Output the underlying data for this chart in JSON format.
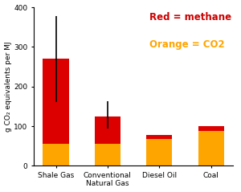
{
  "categories": [
    "Shale Gas",
    "Conventional\nNatural Gas",
    "Diesel Oil",
    "Coal"
  ],
  "orange_values": [
    55,
    55,
    68,
    88
  ],
  "red_values": [
    215,
    70,
    10,
    12
  ],
  "totals": [
    270,
    125,
    78,
    100
  ],
  "error_bars_lower": [
    110,
    30,
    0,
    0
  ],
  "error_bars_upper": [
    108,
    38,
    0,
    0
  ],
  "orange_color": "#FFA500",
  "red_color": "#DD0000",
  "ylabel": "g CO₂ equivalents per MJ",
  "ylim": [
    0,
    400
  ],
  "yticks": [
    0,
    100,
    200,
    300,
    400
  ],
  "legend_red_text": "Red = methane",
  "legend_orange_text": "Orange = CO2",
  "legend_red_color": "#CC0000",
  "legend_orange_color": "#FFA500",
  "bg_color": "#FFFFFF"
}
